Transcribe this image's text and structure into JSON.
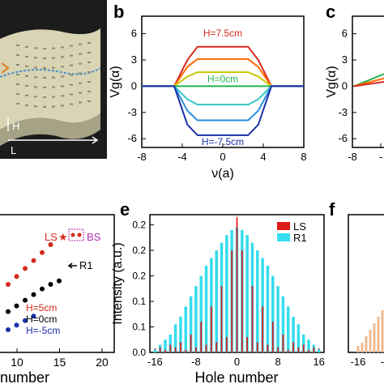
{
  "panels": {
    "b_letter": "b",
    "c_letter": "c",
    "e_letter": "e",
    "f_letter": "f"
  },
  "illustration": {
    "h_label": "H",
    "l_label": "L",
    "colors": {
      "background": "#1c1c1c",
      "slab": "#d8d4b4",
      "guide": "#4a90c8",
      "arrow": "#e07820"
    }
  },
  "chart_data": [
    {
      "id": "b",
      "type": "line",
      "xlabel": "ν(a)",
      "ylabel": "Vg(α)",
      "xlim": [
        -8,
        8
      ],
      "ylim": [
        -7,
        8
      ],
      "xticks": [
        -8,
        -4,
        0,
        4,
        8
      ],
      "yticks": [
        -6,
        -3,
        0,
        3,
        6
      ],
      "series": [
        {
          "color": "#d42a1e",
          "x": [
            -8,
            -4.8,
            -3.5,
            -2.5,
            2.5,
            3.5,
            4.8,
            8
          ],
          "y": [
            0,
            0,
            3,
            4.5,
            4.5,
            3,
            0,
            0
          ]
        },
        {
          "color": "#ff6a00",
          "x": [
            -8,
            -4.8,
            -3.5,
            -2.5,
            2.5,
            3.5,
            4.8,
            8
          ],
          "y": [
            0,
            0,
            2.2,
            3.1,
            3.1,
            2.2,
            0,
            0
          ]
        },
        {
          "color": "#c8c800",
          "x": [
            -8,
            -4.8,
            -3.5,
            -2.5,
            2.5,
            3.5,
            4.8,
            8
          ],
          "y": [
            0,
            0,
            1.1,
            1.6,
            1.6,
            1.1,
            0,
            0
          ]
        },
        {
          "color": "#22b24a",
          "x": [
            -8,
            -4.8,
            4.8,
            8
          ],
          "y": [
            0,
            0,
            0,
            0
          ]
        },
        {
          "color": "#33c8c8",
          "x": [
            -8,
            -4.8,
            -3.5,
            -2.5,
            2.5,
            3.5,
            4.8,
            8
          ],
          "y": [
            0,
            0,
            -1.5,
            -2.1,
            -2.1,
            -1.5,
            0,
            0
          ]
        },
        {
          "color": "#2a8ee0",
          "x": [
            -8,
            -4.8,
            -3.5,
            -2.5,
            2.5,
            3.5,
            4.8,
            8
          ],
          "y": [
            0,
            0,
            -2.8,
            -3.9,
            -3.9,
            -2.8,
            0,
            0
          ]
        },
        {
          "color": "#1a2fa8",
          "x": [
            -8,
            -4.8,
            -3.5,
            -2.5,
            2.5,
            3.5,
            4.8,
            8
          ],
          "y": [
            0,
            0,
            -4.4,
            -5.6,
            -5.6,
            -4.4,
            0,
            0
          ]
        }
      ],
      "annotations": [
        {
          "text": "H=7.5cm",
          "color": "#d42a1e"
        },
        {
          "text": "H=0cm",
          "color": "#22b24a"
        },
        {
          "text": "H=-7.5cm",
          "color": "#1a2fa8"
        }
      ]
    },
    {
      "id": "c",
      "type": "line",
      "xlabel": "",
      "ylabel": "Vg(α)",
      "ylim": [
        -7,
        8
      ],
      "yticks": [
        -6,
        -3,
        0,
        3,
        6
      ],
      "xticks_visible": [
        "-8",
        "-"
      ],
      "series": [
        {
          "color": "#22b24a",
          "x": [
            0,
            1
          ],
          "y": [
            0,
            1.4
          ]
        },
        {
          "color": "#ff6a00",
          "x": [
            0,
            1
          ],
          "y": [
            0,
            0.9
          ]
        },
        {
          "color": "#d42a1e",
          "x": [
            0,
            1
          ],
          "y": [
            0,
            0.5
          ]
        }
      ]
    },
    {
      "id": "d",
      "type": "scatter",
      "xlabel": "number",
      "xticks": [
        10,
        15,
        20
      ],
      "xlim": [
        8,
        20
      ],
      "series": [
        {
          "name": "H=5cm",
          "color": "#d42a1e",
          "x": [
            9,
            10,
            11,
            12,
            13,
            14
          ],
          "y": [
            6,
            6.7,
            7.4,
            8.1,
            8.8,
            9.5
          ]
        },
        {
          "name": "H=0cm",
          "color": "#000000",
          "x": [
            9,
            10,
            11,
            12,
            13,
            14,
            15
          ],
          "y": [
            3.6,
            4.1,
            4.6,
            5.1,
            5.6,
            6.0,
            6.3
          ]
        },
        {
          "name": "H=-5cm",
          "color": "#1a2fa8",
          "x": [
            9,
            10,
            11,
            12
          ],
          "y": [
            2.0,
            2.4,
            2.8,
            3.2
          ]
        }
      ],
      "annotations": [
        {
          "text": "LS",
          "color": "#d42a1e"
        },
        {
          "text": "★",
          "color": "#d42a1e"
        },
        {
          "text": "BS",
          "color": "#b030b0"
        },
        {
          "text": "R1",
          "color": "#000000"
        }
      ]
    },
    {
      "id": "e",
      "type": "bar",
      "xlabel": "Hole number",
      "ylabel": "Intensity (a.u.)",
      "xlim": [
        -17,
        17
      ],
      "ylim": [
        0,
        0.27
      ],
      "xticks": [
        -16,
        -8,
        0,
        8,
        16
      ],
      "yticks": [
        0.0,
        0.05,
        0.1,
        0.15,
        0.2,
        0.25
      ],
      "ytick_labels": [
        "0.0",
        "0.1",
        "0.1",
        "0.2",
        "0.2",
        "0.2"
      ],
      "x": [
        -16,
        -15,
        -14,
        -13,
        -12,
        -11,
        -10,
        -9,
        -8,
        -7,
        -6,
        -5,
        -4,
        -3,
        -2,
        -1,
        0,
        1,
        2,
        3,
        4,
        5,
        6,
        7,
        8,
        9,
        10,
        11,
        12,
        13,
        14,
        15,
        16
      ],
      "series": [
        {
          "name": "LS",
          "color": "#dd1a1a",
          "values": [
            0,
            0.01,
            0.005,
            0.015,
            0.01,
            0.02,
            0.005,
            0.035,
            0.01,
            0.06,
            0.015,
            0.09,
            0.02,
            0.13,
            0.03,
            0.2,
            0.265,
            0.2,
            0.03,
            0.13,
            0.02,
            0.09,
            0.015,
            0.06,
            0.01,
            0.035,
            0.005,
            0.02,
            0.01,
            0.015,
            0.005,
            0.01,
            0
          ]
        },
        {
          "name": "R1",
          "color": "#33ddee",
          "values": [
            0.005,
            0.015,
            0.025,
            0.035,
            0.055,
            0.07,
            0.09,
            0.11,
            0.13,
            0.15,
            0.17,
            0.185,
            0.2,
            0.215,
            0.23,
            0.24,
            0.245,
            0.24,
            0.23,
            0.215,
            0.2,
            0.185,
            0.17,
            0.15,
            0.13,
            0.11,
            0.09,
            0.07,
            0.055,
            0.035,
            0.025,
            0.015,
            0.005
          ]
        }
      ]
    },
    {
      "id": "f",
      "type": "bar",
      "xticks_visible": [
        "-16",
        "-"
      ],
      "series": [
        {
          "color": "#f0b890",
          "x": [
            -16,
            -15,
            -14,
            -13,
            -12,
            -11,
            -10
          ],
          "values": [
            0.02,
            0.03,
            0.05,
            0.07,
            0.09,
            0.11,
            0.13
          ]
        }
      ]
    }
  ]
}
